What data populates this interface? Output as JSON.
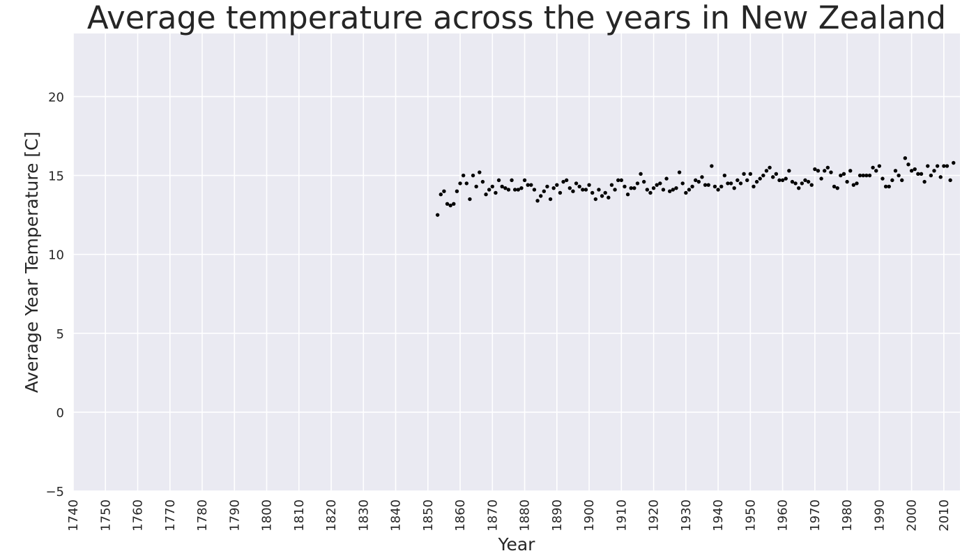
{
  "chart_data": {
    "type": "scatter",
    "title": "Average temperature across the years in New Zealand",
    "xlabel": "Year",
    "ylabel": "Average Year Temperature [C]",
    "xlim": [
      1740,
      2015
    ],
    "ylim": [
      -5,
      24
    ],
    "xticks": [
      "1740",
      "1750",
      "1760",
      "1770",
      "1780",
      "1790",
      "1800",
      "1810",
      "1820",
      "1830",
      "1840",
      "1850",
      "1860",
      "1870",
      "1880",
      "1890",
      "1900",
      "1910",
      "1920",
      "1930",
      "1940",
      "1950",
      "1960",
      "1970",
      "1980",
      "1990",
      "2000",
      "2010"
    ],
    "yticks": [
      "−5",
      "0",
      "5",
      "10",
      "15",
      "20"
    ],
    "grid": true,
    "colors": {
      "background": "#eaeaf2",
      "grid": "#ffffff",
      "marker": "#000000",
      "text": "#262626"
    },
    "x": [
      1853,
      1854,
      1855,
      1856,
      1857,
      1858,
      1859,
      1860,
      1861,
      1862,
      1863,
      1864,
      1865,
      1866,
      1867,
      1868,
      1869,
      1870,
      1871,
      1872,
      1873,
      1874,
      1875,
      1876,
      1877,
      1878,
      1879,
      1880,
      1881,
      1882,
      1883,
      1884,
      1885,
      1886,
      1887,
      1888,
      1889,
      1890,
      1891,
      1892,
      1893,
      1894,
      1895,
      1896,
      1897,
      1898,
      1899,
      1900,
      1901,
      1902,
      1903,
      1904,
      1905,
      1906,
      1907,
      1908,
      1909,
      1910,
      1911,
      1912,
      1913,
      1914,
      1915,
      1916,
      1917,
      1918,
      1919,
      1920,
      1921,
      1922,
      1923,
      1924,
      1925,
      1926,
      1927,
      1928,
      1929,
      1930,
      1931,
      1932,
      1933,
      1934,
      1935,
      1936,
      1937,
      1938,
      1939,
      1940,
      1941,
      1942,
      1943,
      1944,
      1945,
      1946,
      1947,
      1948,
      1949,
      1950,
      1951,
      1952,
      1953,
      1954,
      1955,
      1956,
      1957,
      1958,
      1959,
      1960,
      1961,
      1962,
      1963,
      1964,
      1965,
      1966,
      1967,
      1968,
      1969,
      1970,
      1971,
      1972,
      1973,
      1974,
      1975,
      1976,
      1977,
      1978,
      1979,
      1980,
      1981,
      1982,
      1983,
      1984,
      1985,
      1986,
      1987,
      1988,
      1989,
      1990,
      1991,
      1992,
      1993,
      1994,
      1995,
      1996,
      1997,
      1998,
      1999,
      2000,
      2001,
      2002,
      2003,
      2004,
      2005,
      2006,
      2007,
      2008,
      2009,
      2010,
      2011,
      2012,
      2013
    ],
    "y": [
      12.5,
      13.8,
      14.0,
      13.2,
      13.1,
      13.2,
      14.0,
      14.5,
      15.0,
      14.5,
      13.5,
      15.0,
      14.3,
      15.2,
      14.6,
      13.8,
      14.1,
      14.3,
      13.9,
      14.7,
      14.3,
      14.2,
      14.1,
      14.7,
      14.1,
      14.1,
      14.2,
      14.7,
      14.4,
      14.4,
      14.1,
      13.4,
      13.7,
      14.0,
      14.3,
      13.5,
      14.2,
      14.4,
      13.9,
      14.6,
      14.7,
      14.2,
      14.0,
      14.5,
      14.3,
      14.1,
      14.1,
      14.4,
      13.9,
      13.5,
      14.1,
      13.7,
      13.9,
      13.6,
      14.4,
      14.1,
      14.7,
      14.7,
      14.3,
      13.8,
      14.2,
      14.2,
      14.5,
      15.1,
      14.6,
      14.1,
      13.9,
      14.2,
      14.4,
      14.5,
      14.1,
      14.8,
      14.0,
      14.1,
      14.2,
      15.2,
      14.5,
      13.9,
      14.1,
      14.3,
      14.7,
      14.6,
      14.9,
      14.4,
      14.4,
      15.6,
      14.3,
      14.1,
      14.3,
      15.0,
      14.5,
      14.5,
      14.2,
      14.7,
      14.5,
      15.1,
      14.7,
      15.1,
      14.3,
      14.6,
      14.8,
      15.0,
      15.3,
      15.5,
      14.9,
      15.1,
      14.7,
      14.7,
      14.8,
      15.3,
      14.6,
      14.5,
      14.2,
      14.5,
      14.7,
      14.6,
      14.4,
      15.4,
      15.3,
      14.8,
      15.3,
      15.5,
      15.2,
      14.3,
      14.2,
      15.0,
      15.1,
      14.6,
      15.3,
      14.4,
      14.5,
      15.0,
      15.0,
      15.0,
      15.0,
      15.5,
      15.3,
      15.6,
      14.8,
      14.3,
      14.3,
      14.7,
      15.3,
      15.0,
      14.7,
      16.1,
      15.7,
      15.3,
      15.4,
      15.1,
      15.1,
      14.6,
      15.6,
      15.0,
      15.3,
      15.6,
      14.9,
      15.6,
      15.6,
      14.7,
      15.8
    ]
  }
}
